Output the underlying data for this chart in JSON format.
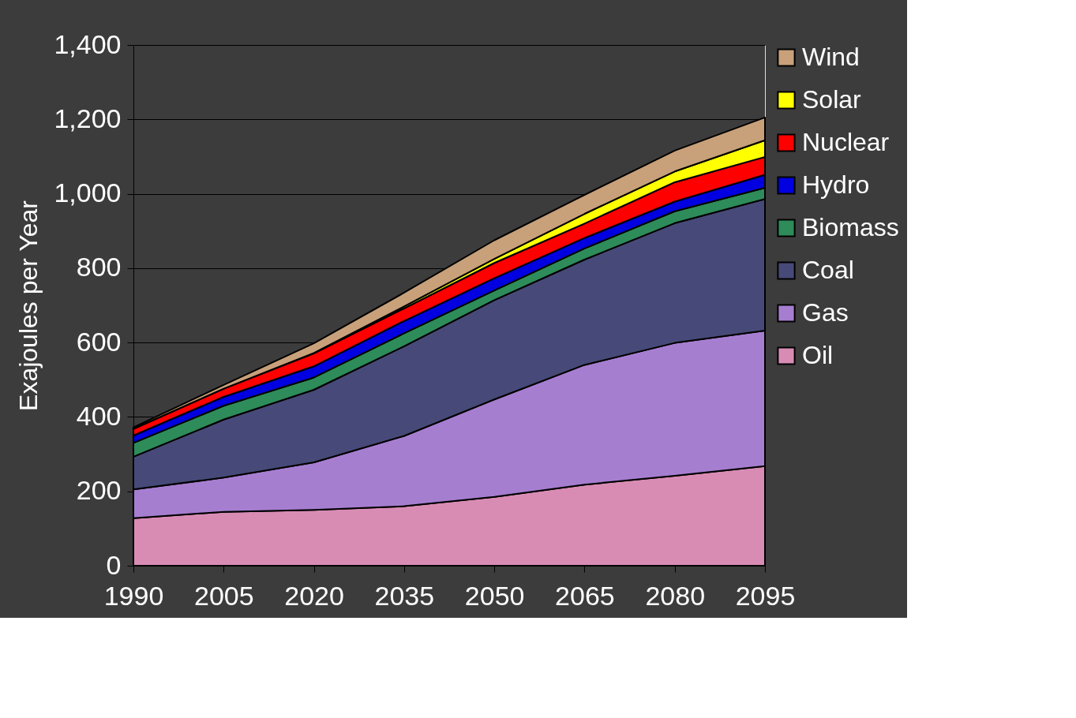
{
  "chart_data": {
    "type": "area",
    "stacked": true,
    "ylabel": "Exajoules per Year",
    "categories": [
      "1990",
      "2005",
      "2020",
      "2035",
      "2050",
      "2065",
      "2080",
      "2095"
    ],
    "series": [
      {
        "name": "Oil",
        "color": "#d88cb4",
        "values": [
          128,
          145,
          150,
          160,
          185,
          218,
          242,
          268
        ]
      },
      {
        "name": "Gas",
        "color": "#a67ed0",
        "values": [
          77,
          92,
          128,
          189,
          262,
          322,
          357,
          364
        ]
      },
      {
        "name": "Coal",
        "color": "#474a78",
        "values": [
          88,
          156,
          195,
          241,
          267,
          283,
          322,
          354
        ]
      },
      {
        "name": "Biomass",
        "color": "#2e8b5a",
        "values": [
          37,
          37,
          33,
          35,
          26,
          30,
          32,
          30
        ]
      },
      {
        "name": "Hydro",
        "color": "#0000e0",
        "values": [
          20,
          24,
          30,
          33,
          33,
          28,
          26,
          35
        ]
      },
      {
        "name": "Nuclear",
        "color": "#ff0000",
        "values": [
          18,
          22,
          35,
          34,
          41,
          39,
          52,
          48
        ]
      },
      {
        "name": "Solar",
        "color": "#ffff00",
        "values": [
          0,
          0,
          1,
          5,
          11,
          26,
          29,
          45
        ]
      },
      {
        "name": "Wind",
        "color": "#c8a07a",
        "values": [
          4,
          10,
          26,
          37,
          50,
          51,
          56,
          61
        ]
      }
    ],
    "ylim": [
      0,
      1400
    ],
    "yticks": [
      0,
      200,
      400,
      600,
      800,
      {
        "value": 1000,
        "label": "1,000"
      },
      {
        "value": 1200,
        "label": "1,200"
      },
      {
        "value": 1400,
        "label": "1,400"
      }
    ],
    "grid": "y",
    "legend": "right"
  }
}
